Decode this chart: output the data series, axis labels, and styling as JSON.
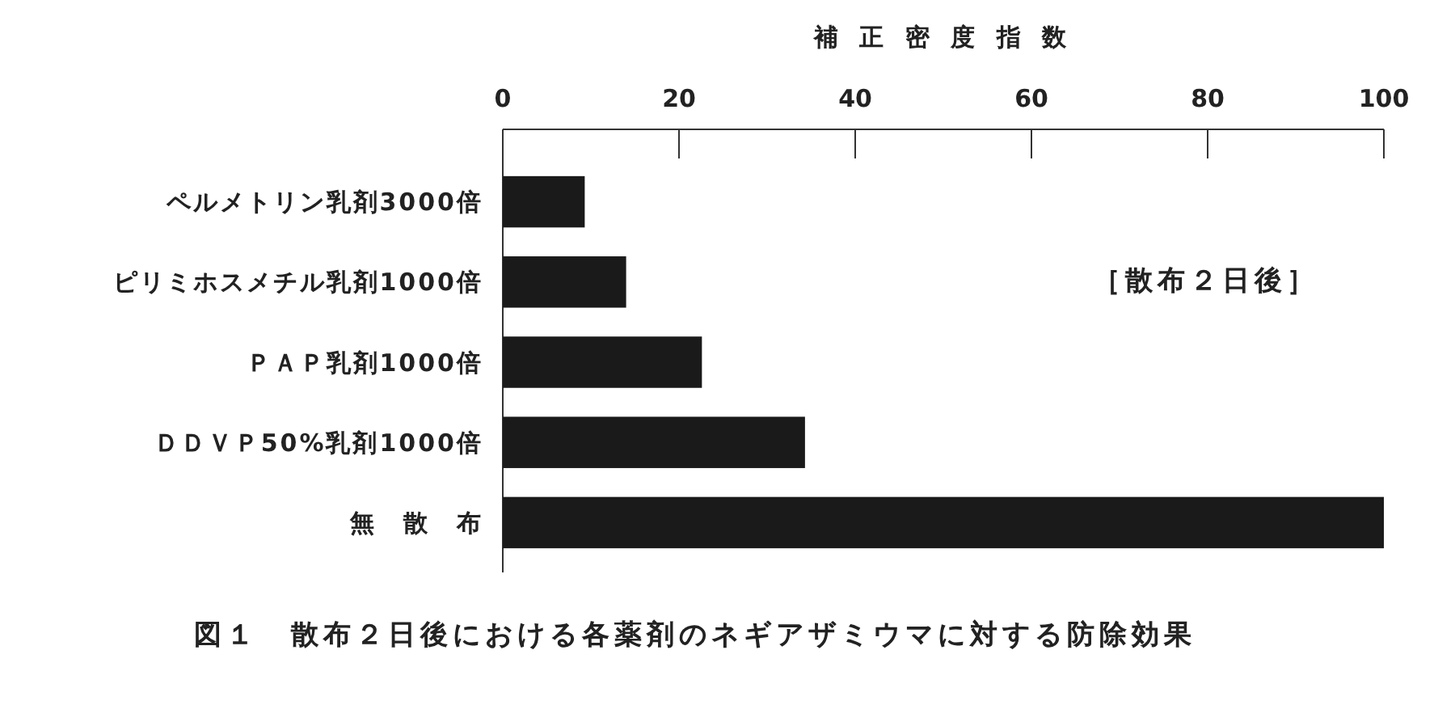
{
  "chart_data": {
    "type": "bar",
    "orientation": "horizontal",
    "title": "図１　散布２日後における各薬剤のネギアザミウマに対する防除効果",
    "xlabel": "補 正 密 度 指 数",
    "categories": [
      "ペルメトリン乳剤3000倍",
      "ピリミホスメチル乳剤1000倍",
      "ＰＡＰ乳剤1000倍",
      "ＤＤＶＰ50%乳剤1000倍",
      "無　散　布"
    ],
    "values": [
      9.3,
      14,
      22.6,
      34.3,
      100
    ],
    "color": "#1a1a1a",
    "xlim": [
      0,
      100
    ],
    "xticks": [
      0,
      20,
      40,
      60,
      80,
      100
    ],
    "grid": false,
    "annotations": [
      "［散布２日後］"
    ]
  }
}
